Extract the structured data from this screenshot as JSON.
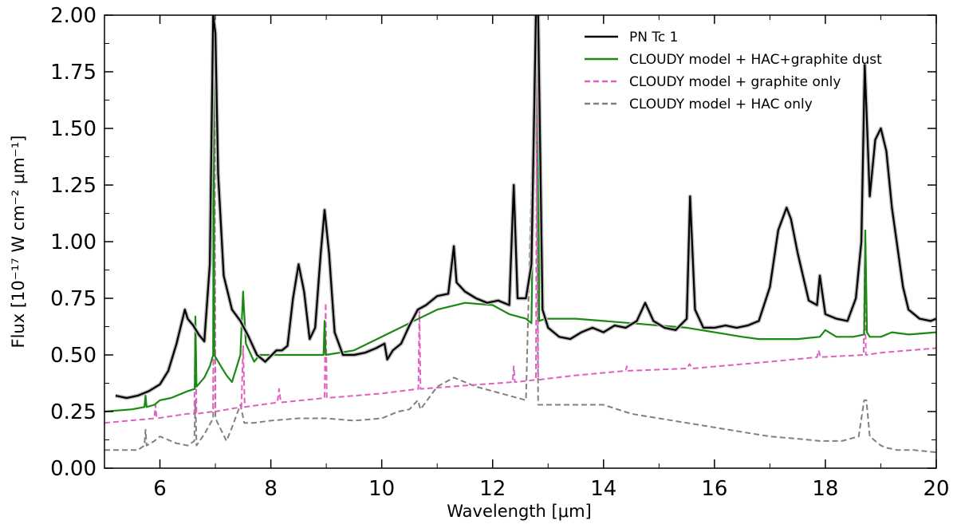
{
  "chart_data": {
    "type": "line",
    "title": "",
    "xlabel": "Wavelength [μm]",
    "ylabel": "Flux [10⁻¹⁷ W cm⁻² μm⁻¹]",
    "xlim": [
      5,
      20
    ],
    "ylim": [
      0,
      2.0
    ],
    "x_ticks": [
      {
        "value": 6,
        "label": "6"
      },
      {
        "value": 8,
        "label": "8"
      },
      {
        "value": 10,
        "label": "10"
      },
      {
        "value": 12,
        "label": "12"
      },
      {
        "value": 14,
        "label": "14"
      },
      {
        "value": 16,
        "label": "16"
      },
      {
        "value": 18,
        "label": "18"
      },
      {
        "value": 20,
        "label": "20"
      }
    ],
    "y_ticks": [
      {
        "value": 0.0,
        "label": "0.00"
      },
      {
        "value": 0.25,
        "label": "0.25"
      },
      {
        "value": 0.5,
        "label": "0.50"
      },
      {
        "value": 0.75,
        "label": "0.75"
      },
      {
        "value": 1.0,
        "label": "1.00"
      },
      {
        "value": 1.25,
        "label": "1.25"
      },
      {
        "value": 1.5,
        "label": "1.50"
      },
      {
        "value": 1.75,
        "label": "1.75"
      },
      {
        "value": 2.0,
        "label": "2.00"
      }
    ],
    "legend_position": "top-right",
    "series": [
      {
        "name": "PN Tc 1",
        "color": "#000000",
        "dash": "solid",
        "error_color": "#bbbbbb",
        "x": [
          5.2,
          5.4,
          5.6,
          5.8,
          6.0,
          6.15,
          6.3,
          6.45,
          6.5,
          6.6,
          6.7,
          6.8,
          6.9,
          6.96,
          7.0,
          7.05,
          7.15,
          7.3,
          7.45,
          7.6,
          7.75,
          7.9,
          8.1,
          8.2,
          8.3,
          8.4,
          8.5,
          8.6,
          8.7,
          8.8,
          8.9,
          8.97,
          9.05,
          9.15,
          9.3,
          9.5,
          9.7,
          9.9,
          10.05,
          10.1,
          10.2,
          10.35,
          10.5,
          10.65,
          10.8,
          11.0,
          11.2,
          11.3,
          11.35,
          11.5,
          11.7,
          11.9,
          12.1,
          12.3,
          12.38,
          12.45,
          12.6,
          12.7,
          12.78,
          12.82,
          12.9,
          13.0,
          13.2,
          13.4,
          13.6,
          13.8,
          14.0,
          14.2,
          14.4,
          14.6,
          14.75,
          14.9,
          15.1,
          15.3,
          15.5,
          15.56,
          15.65,
          15.8,
          16.0,
          16.2,
          16.4,
          16.6,
          16.8,
          17.0,
          17.15,
          17.3,
          17.38,
          17.5,
          17.7,
          17.85,
          17.9,
          18.0,
          18.2,
          18.4,
          18.55,
          18.65,
          18.71,
          18.8,
          18.9,
          19.0,
          19.1,
          19.2,
          19.4,
          19.5,
          19.7,
          19.9,
          20.0
        ],
        "y": [
          0.32,
          0.31,
          0.32,
          0.34,
          0.37,
          0.43,
          0.55,
          0.7,
          0.66,
          0.63,
          0.59,
          0.56,
          0.9,
          2.0,
          1.92,
          1.3,
          0.85,
          0.7,
          0.65,
          0.58,
          0.5,
          0.47,
          0.52,
          0.52,
          0.54,
          0.75,
          0.9,
          0.78,
          0.57,
          0.62,
          0.95,
          1.14,
          0.95,
          0.6,
          0.5,
          0.5,
          0.51,
          0.53,
          0.55,
          0.48,
          0.52,
          0.55,
          0.63,
          0.7,
          0.72,
          0.76,
          0.77,
          0.98,
          0.82,
          0.78,
          0.75,
          0.73,
          0.74,
          0.72,
          1.25,
          0.75,
          0.75,
          0.9,
          2.0,
          2.0,
          0.7,
          0.62,
          0.58,
          0.57,
          0.6,
          0.62,
          0.6,
          0.63,
          0.62,
          0.65,
          0.73,
          0.65,
          0.62,
          0.61,
          0.66,
          1.2,
          0.7,
          0.62,
          0.62,
          0.63,
          0.62,
          0.63,
          0.65,
          0.8,
          1.05,
          1.15,
          1.1,
          0.95,
          0.74,
          0.72,
          0.85,
          0.68,
          0.66,
          0.65,
          0.75,
          1.0,
          1.78,
          1.2,
          1.45,
          1.5,
          1.4,
          1.15,
          0.8,
          0.7,
          0.66,
          0.65,
          0.66
        ]
      },
      {
        "name": "CLOUDY model + HAC+graphite dust",
        "color": "#1a8a12",
        "dash": "solid",
        "x": [
          5.0,
          5.5,
          5.72,
          5.74,
          5.76,
          5.9,
          6.0,
          6.2,
          6.4,
          6.5,
          6.63,
          6.64,
          6.66,
          6.8,
          6.9,
          6.96,
          6.97,
          6.98,
          7.1,
          7.2,
          7.3,
          7.45,
          7.5,
          7.55,
          7.7,
          7.8,
          8.0,
          8.5,
          8.95,
          8.97,
          8.99,
          9.5,
          10.0,
          10.5,
          11.0,
          11.5,
          12.0,
          12.3,
          12.6,
          12.7,
          12.78,
          12.81,
          12.84,
          12.95,
          13.5,
          14.0,
          14.5,
          15.0,
          15.5,
          16.0,
          16.5,
          16.8,
          17.0,
          17.5,
          17.9,
          18.0,
          18.2,
          18.5,
          18.7,
          18.72,
          18.75,
          18.8,
          19.0,
          19.2,
          19.5,
          20.0
        ],
        "y": [
          0.25,
          0.26,
          0.27,
          0.32,
          0.27,
          0.28,
          0.3,
          0.31,
          0.33,
          0.34,
          0.35,
          0.67,
          0.36,
          0.4,
          0.45,
          0.5,
          2.0,
          0.5,
          0.45,
          0.41,
          0.38,
          0.5,
          0.78,
          0.55,
          0.47,
          0.5,
          0.5,
          0.5,
          0.5,
          0.65,
          0.5,
          0.52,
          0.58,
          0.64,
          0.7,
          0.73,
          0.72,
          0.68,
          0.66,
          0.64,
          2.0,
          2.0,
          0.65,
          0.66,
          0.66,
          0.65,
          0.64,
          0.63,
          0.62,
          0.6,
          0.58,
          0.57,
          0.57,
          0.57,
          0.58,
          0.61,
          0.58,
          0.58,
          0.59,
          1.05,
          0.6,
          0.58,
          0.58,
          0.6,
          0.59,
          0.6
        ]
      },
      {
        "name": "CLOUDY model + graphite only",
        "color": "#e060c0",
        "dash": "dashed",
        "x": [
          5.0,
          5.9,
          5.92,
          5.94,
          6.5,
          6.62,
          6.64,
          6.66,
          6.96,
          6.98,
          7.0,
          7.47,
          7.5,
          7.53,
          8.12,
          8.15,
          8.18,
          8.97,
          8.99,
          9.01,
          10.0,
          10.66,
          10.68,
          10.7,
          11.8,
          12.36,
          12.38,
          12.4,
          12.78,
          12.8,
          12.82,
          13.5,
          14.4,
          14.42,
          14.44,
          15.5,
          15.55,
          15.6,
          17.0,
          17.85,
          17.88,
          17.91,
          18.69,
          18.71,
          18.73,
          19.0,
          20.0
        ],
        "y": [
          0.2,
          0.22,
          0.28,
          0.22,
          0.24,
          0.24,
          0.66,
          0.24,
          0.25,
          2.0,
          0.25,
          0.27,
          0.54,
          0.27,
          0.29,
          0.35,
          0.29,
          0.31,
          0.73,
          0.31,
          0.33,
          0.35,
          0.7,
          0.35,
          0.37,
          0.38,
          0.45,
          0.38,
          0.39,
          2.0,
          0.39,
          0.41,
          0.43,
          0.45,
          0.43,
          0.44,
          0.46,
          0.44,
          0.47,
          0.49,
          0.52,
          0.49,
          0.5,
          0.9,
          0.5,
          0.51,
          0.53
        ]
      },
      {
        "name": "CLOUDY model + HAC only",
        "color": "#808080",
        "dash": "dashed",
        "x": [
          5.0,
          5.3,
          5.6,
          5.72,
          5.74,
          5.76,
          5.9,
          6.0,
          6.3,
          6.5,
          6.62,
          6.64,
          6.66,
          6.8,
          6.96,
          6.98,
          7.0,
          7.2,
          7.3,
          7.45,
          7.48,
          7.52,
          7.7,
          8.0,
          8.5,
          9.0,
          9.5,
          10.0,
          10.3,
          10.5,
          10.65,
          10.7,
          11.0,
          11.3,
          11.5,
          11.7,
          12.0,
          12.3,
          12.6,
          12.78,
          12.82,
          13.0,
          13.5,
          14.0,
          14.5,
          15.0,
          15.5,
          16.0,
          16.5,
          17.0,
          17.5,
          17.9,
          18.3,
          18.6,
          18.7,
          18.74,
          18.8,
          19.0,
          19.1,
          19.3,
          19.6,
          20.0
        ],
        "y": [
          0.08,
          0.08,
          0.08,
          0.1,
          0.17,
          0.1,
          0.12,
          0.14,
          0.11,
          0.1,
          0.12,
          0.3,
          0.1,
          0.15,
          0.22,
          2.0,
          0.22,
          0.12,
          0.18,
          0.28,
          0.25,
          0.2,
          0.2,
          0.21,
          0.22,
          0.22,
          0.21,
          0.22,
          0.25,
          0.26,
          0.3,
          0.26,
          0.36,
          0.4,
          0.38,
          0.36,
          0.34,
          0.32,
          0.3,
          2.0,
          0.28,
          0.28,
          0.28,
          0.28,
          0.24,
          0.22,
          0.2,
          0.18,
          0.16,
          0.14,
          0.13,
          0.12,
          0.12,
          0.14,
          0.3,
          0.3,
          0.14,
          0.1,
          0.09,
          0.08,
          0.08,
          0.07
        ]
      }
    ]
  }
}
